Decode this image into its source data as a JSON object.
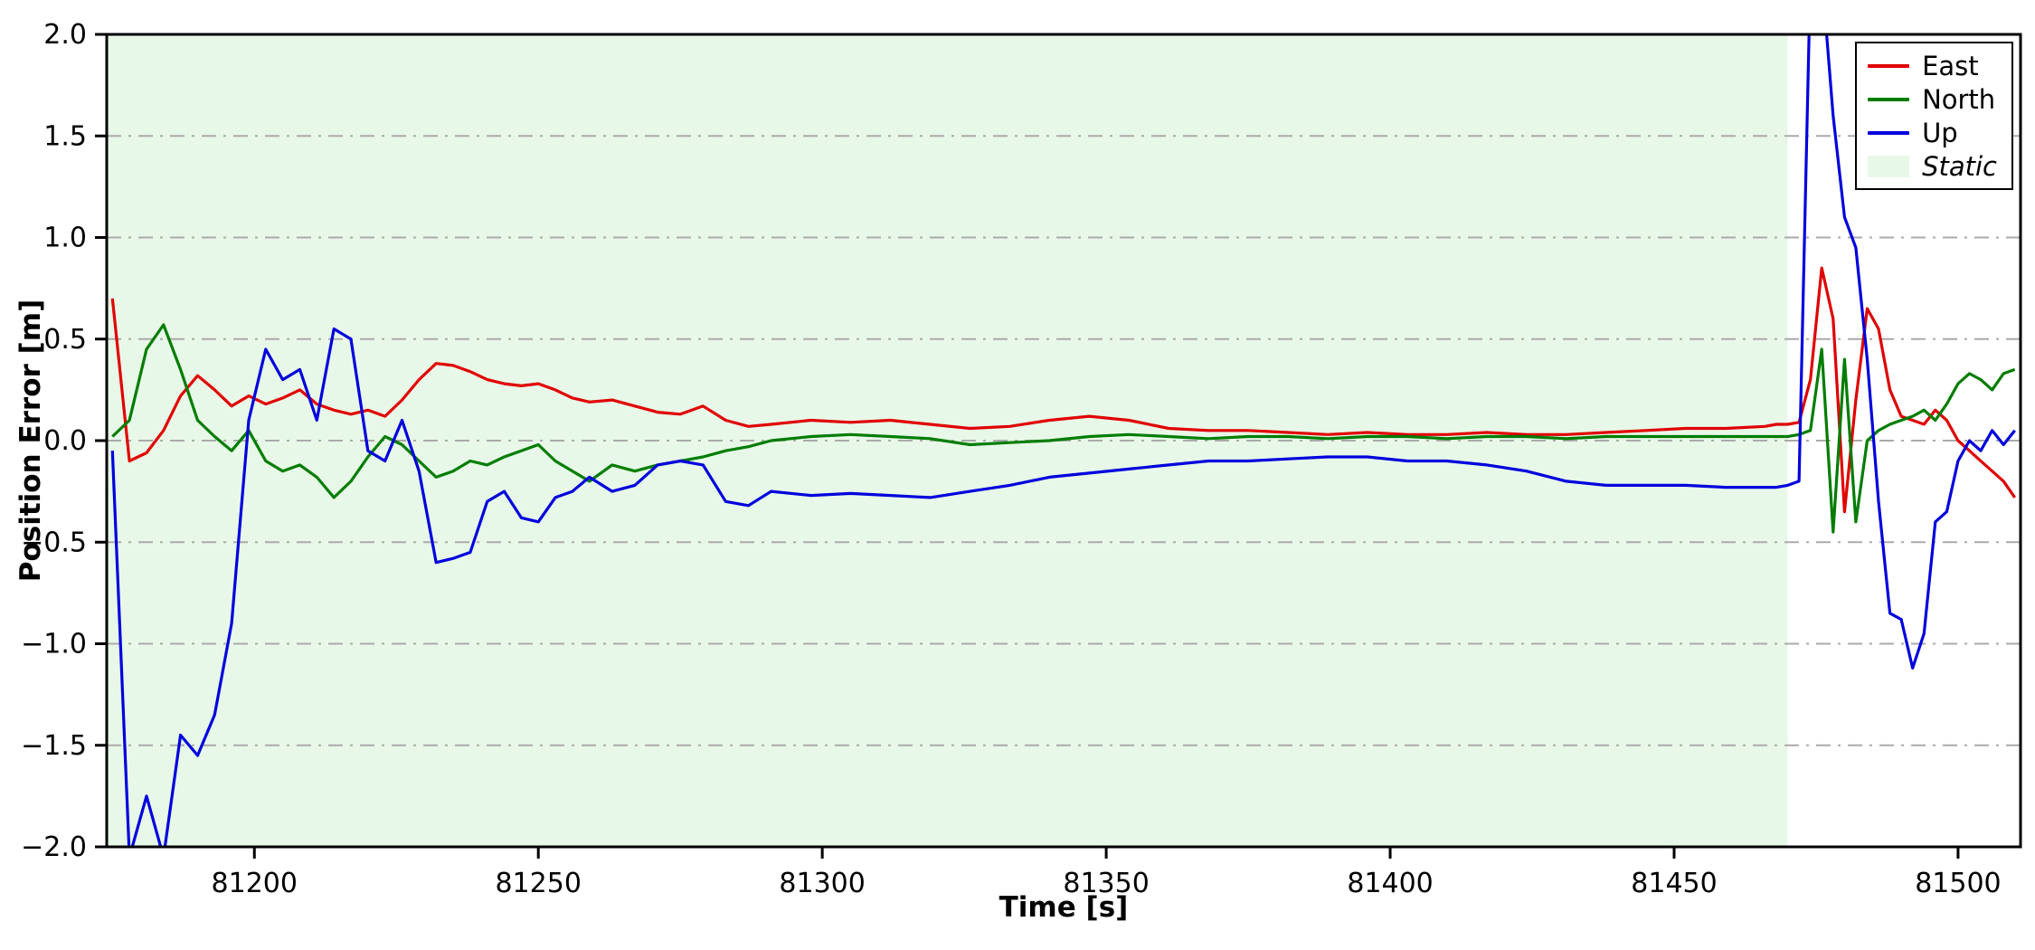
{
  "figure": {
    "background": "#ffffff",
    "axis_color": "#000000",
    "grid_color": "#aaaaaa",
    "grid_style": "dash-dot horizontal"
  },
  "chart_data": {
    "type": "line",
    "title": "",
    "xlabel": "Time [s]",
    "ylabel": "Position Error [m]",
    "xlim": [
      81174,
      81511
    ],
    "ylim": [
      -2.0,
      2.0
    ],
    "xticks": [
      81200,
      81250,
      81300,
      81350,
      81400,
      81450,
      81500
    ],
    "x_tick_labels": [
      "81200",
      "81250",
      "81300",
      "81350",
      "81400",
      "81450",
      "81500"
    ],
    "yticks": [
      -2.0,
      -1.5,
      -1.0,
      -0.5,
      0.0,
      0.5,
      1.0,
      1.5,
      2.0
    ],
    "y_tick_labels": [
      "−2.0",
      "−1.5",
      "−1.0",
      "−0.5",
      "0.0",
      "0.5",
      "1.0",
      "1.5",
      "2.0"
    ],
    "grid": "horizontal dash-dot gray",
    "legend_position": "upper right",
    "x": [
      81175,
      81178,
      81181,
      81184,
      81187,
      81190,
      81193,
      81196,
      81199,
      81202,
      81205,
      81208,
      81211,
      81214,
      81217,
      81220,
      81223,
      81226,
      81229,
      81232,
      81235,
      81238,
      81241,
      81244,
      81247,
      81250,
      81253,
      81256,
      81259,
      81263,
      81267,
      81271,
      81275,
      81279,
      81283,
      81287,
      81291,
      81298,
      81305,
      81312,
      81319,
      81326,
      81333,
      81340,
      81347,
      81354,
      81361,
      81368,
      81375,
      81382,
      81389,
      81396,
      81403,
      81410,
      81417,
      81424,
      81431,
      81438,
      81445,
      81452,
      81459,
      81466,
      81468,
      81470,
      81472,
      81474,
      81476,
      81478,
      81480,
      81482,
      81484,
      81486,
      81488,
      81490,
      81492,
      81494,
      81496,
      81498,
      81500,
      81502,
      81504,
      81506,
      81508,
      81510
    ],
    "series": [
      {
        "name": "East",
        "color": "#e00000",
        "values": [
          0.7,
          -0.1,
          -0.06,
          0.05,
          0.22,
          0.32,
          0.25,
          0.17,
          0.22,
          0.18,
          0.21,
          0.25,
          0.18,
          0.15,
          0.13,
          0.15,
          0.12,
          0.2,
          0.3,
          0.38,
          0.37,
          0.34,
          0.3,
          0.28,
          0.27,
          0.28,
          0.25,
          0.21,
          0.19,
          0.2,
          0.17,
          0.14,
          0.13,
          0.17,
          0.1,
          0.07,
          0.08,
          0.1,
          0.09,
          0.1,
          0.08,
          0.06,
          0.07,
          0.1,
          0.12,
          0.1,
          0.06,
          0.05,
          0.05,
          0.04,
          0.03,
          0.04,
          0.03,
          0.03,
          0.04,
          0.03,
          0.03,
          0.04,
          0.05,
          0.06,
          0.06,
          0.07,
          0.08,
          0.08,
          0.09,
          0.3,
          0.85,
          0.6,
          -0.35,
          0.2,
          0.65,
          0.55,
          0.25,
          0.12,
          0.1,
          0.08,
          0.15,
          0.1,
          0.0,
          -0.05,
          -0.1,
          -0.15,
          -0.2,
          -0.28
        ]
      },
      {
        "name": "North",
        "color": "#007d00",
        "values": [
          0.02,
          0.1,
          0.45,
          0.57,
          0.35,
          0.1,
          0.02,
          -0.05,
          0.05,
          -0.1,
          -0.15,
          -0.12,
          -0.18,
          -0.28,
          -0.2,
          -0.08,
          0.02,
          -0.02,
          -0.1,
          -0.18,
          -0.15,
          -0.1,
          -0.12,
          -0.08,
          -0.05,
          -0.02,
          -0.1,
          -0.15,
          -0.2,
          -0.12,
          -0.15,
          -0.12,
          -0.1,
          -0.08,
          -0.05,
          -0.03,
          0.0,
          0.02,
          0.03,
          0.02,
          0.01,
          -0.02,
          -0.01,
          0.0,
          0.02,
          0.03,
          0.02,
          0.01,
          0.02,
          0.02,
          0.01,
          0.02,
          0.02,
          0.01,
          0.02,
          0.02,
          0.01,
          0.02,
          0.02,
          0.02,
          0.02,
          0.02,
          0.02,
          0.02,
          0.03,
          0.05,
          0.45,
          -0.45,
          0.4,
          -0.4,
          0.0,
          0.05,
          0.08,
          0.1,
          0.12,
          0.15,
          0.1,
          0.18,
          0.28,
          0.33,
          0.3,
          0.25,
          0.33,
          0.35
        ]
      },
      {
        "name": "Up",
        "color": "#0000dd",
        "values": [
          -0.05,
          -2.05,
          -1.75,
          -2.05,
          -1.45,
          -1.55,
          -1.35,
          -0.9,
          0.1,
          0.45,
          0.3,
          0.35,
          0.1,
          0.55,
          0.5,
          -0.05,
          -0.1,
          0.1,
          -0.15,
          -0.6,
          -0.58,
          -0.55,
          -0.3,
          -0.25,
          -0.38,
          -0.4,
          -0.28,
          -0.25,
          -0.18,
          -0.25,
          -0.22,
          -0.12,
          -0.1,
          -0.12,
          -0.3,
          -0.32,
          -0.25,
          -0.27,
          -0.26,
          -0.27,
          -0.28,
          -0.25,
          -0.22,
          -0.18,
          -0.16,
          -0.14,
          -0.12,
          -0.1,
          -0.1,
          -0.09,
          -0.08,
          -0.08,
          -0.1,
          -0.1,
          -0.12,
          -0.15,
          -0.2,
          -0.22,
          -0.22,
          -0.22,
          -0.23,
          -0.23,
          -0.23,
          -0.22,
          -0.2,
          2.3,
          2.3,
          1.6,
          1.1,
          0.95,
          0.4,
          -0.3,
          -0.85,
          -0.88,
          -1.12,
          -0.95,
          -0.4,
          -0.35,
          -0.1,
          0.0,
          -0.05,
          0.05,
          -0.02,
          0.05
        ]
      }
    ],
    "regions": [
      {
        "name": "Static",
        "color": "#e8f8e8",
        "x_start": 81174,
        "x_end": 81470,
        "label_style": "italic"
      }
    ]
  }
}
